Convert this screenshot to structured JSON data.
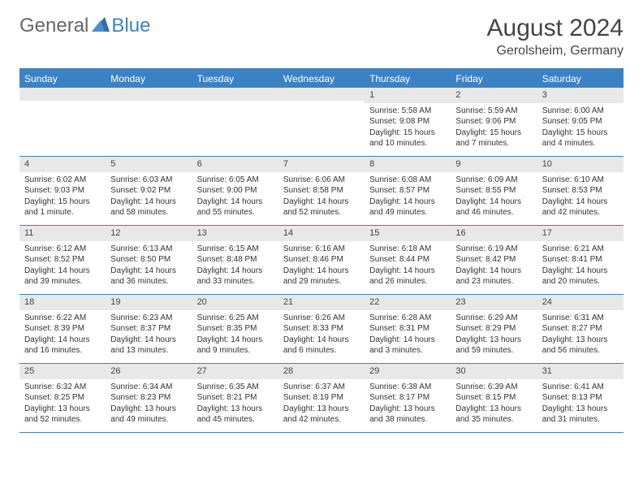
{
  "logo": {
    "general": "General",
    "blue": "Blue"
  },
  "title": "August 2024",
  "location": "Gerolsheim, Germany",
  "colors": {
    "accent": "#3b82c4",
    "headerBg": "#3b82c4",
    "dayNumBg": "#e8e8e8",
    "text": "#333333",
    "pageBg": "#ffffff"
  },
  "daysOfWeek": [
    "Sunday",
    "Monday",
    "Tuesday",
    "Wednesday",
    "Thursday",
    "Friday",
    "Saturday"
  ],
  "weeks": [
    [
      {
        "num": "",
        "lines": [
          "",
          "",
          ""
        ]
      },
      {
        "num": "",
        "lines": [
          "",
          "",
          ""
        ]
      },
      {
        "num": "",
        "lines": [
          "",
          "",
          ""
        ]
      },
      {
        "num": "",
        "lines": [
          "",
          "",
          ""
        ]
      },
      {
        "num": "1",
        "lines": [
          "Sunrise: 5:58 AM",
          "Sunset: 9:08 PM",
          "Daylight: 15 hours and 10 minutes."
        ]
      },
      {
        "num": "2",
        "lines": [
          "Sunrise: 5:59 AM",
          "Sunset: 9:06 PM",
          "Daylight: 15 hours and 7 minutes."
        ]
      },
      {
        "num": "3",
        "lines": [
          "Sunrise: 6:00 AM",
          "Sunset: 9:05 PM",
          "Daylight: 15 hours and 4 minutes."
        ]
      }
    ],
    [
      {
        "num": "4",
        "lines": [
          "Sunrise: 6:02 AM",
          "Sunset: 9:03 PM",
          "Daylight: 15 hours and 1 minute."
        ]
      },
      {
        "num": "5",
        "lines": [
          "Sunrise: 6:03 AM",
          "Sunset: 9:02 PM",
          "Daylight: 14 hours and 58 minutes."
        ]
      },
      {
        "num": "6",
        "lines": [
          "Sunrise: 6:05 AM",
          "Sunset: 9:00 PM",
          "Daylight: 14 hours and 55 minutes."
        ]
      },
      {
        "num": "7",
        "lines": [
          "Sunrise: 6:06 AM",
          "Sunset: 8:58 PM",
          "Daylight: 14 hours and 52 minutes."
        ]
      },
      {
        "num": "8",
        "lines": [
          "Sunrise: 6:08 AM",
          "Sunset: 8:57 PM",
          "Daylight: 14 hours and 49 minutes."
        ]
      },
      {
        "num": "9",
        "lines": [
          "Sunrise: 6:09 AM",
          "Sunset: 8:55 PM",
          "Daylight: 14 hours and 46 minutes."
        ]
      },
      {
        "num": "10",
        "lines": [
          "Sunrise: 6:10 AM",
          "Sunset: 8:53 PM",
          "Daylight: 14 hours and 42 minutes."
        ]
      }
    ],
    [
      {
        "num": "11",
        "lines": [
          "Sunrise: 6:12 AM",
          "Sunset: 8:52 PM",
          "Daylight: 14 hours and 39 minutes."
        ]
      },
      {
        "num": "12",
        "lines": [
          "Sunrise: 6:13 AM",
          "Sunset: 8:50 PM",
          "Daylight: 14 hours and 36 minutes."
        ]
      },
      {
        "num": "13",
        "lines": [
          "Sunrise: 6:15 AM",
          "Sunset: 8:48 PM",
          "Daylight: 14 hours and 33 minutes."
        ]
      },
      {
        "num": "14",
        "lines": [
          "Sunrise: 6:16 AM",
          "Sunset: 8:46 PM",
          "Daylight: 14 hours and 29 minutes."
        ]
      },
      {
        "num": "15",
        "lines": [
          "Sunrise: 6:18 AM",
          "Sunset: 8:44 PM",
          "Daylight: 14 hours and 26 minutes."
        ]
      },
      {
        "num": "16",
        "lines": [
          "Sunrise: 6:19 AM",
          "Sunset: 8:42 PM",
          "Daylight: 14 hours and 23 minutes."
        ]
      },
      {
        "num": "17",
        "lines": [
          "Sunrise: 6:21 AM",
          "Sunset: 8:41 PM",
          "Daylight: 14 hours and 20 minutes."
        ]
      }
    ],
    [
      {
        "num": "18",
        "lines": [
          "Sunrise: 6:22 AM",
          "Sunset: 8:39 PM",
          "Daylight: 14 hours and 16 minutes."
        ]
      },
      {
        "num": "19",
        "lines": [
          "Sunrise: 6:23 AM",
          "Sunset: 8:37 PM",
          "Daylight: 14 hours and 13 minutes."
        ]
      },
      {
        "num": "20",
        "lines": [
          "Sunrise: 6:25 AM",
          "Sunset: 8:35 PM",
          "Daylight: 14 hours and 9 minutes."
        ]
      },
      {
        "num": "21",
        "lines": [
          "Sunrise: 6:26 AM",
          "Sunset: 8:33 PM",
          "Daylight: 14 hours and 6 minutes."
        ]
      },
      {
        "num": "22",
        "lines": [
          "Sunrise: 6:28 AM",
          "Sunset: 8:31 PM",
          "Daylight: 14 hours and 3 minutes."
        ]
      },
      {
        "num": "23",
        "lines": [
          "Sunrise: 6:29 AM",
          "Sunset: 8:29 PM",
          "Daylight: 13 hours and 59 minutes."
        ]
      },
      {
        "num": "24",
        "lines": [
          "Sunrise: 6:31 AM",
          "Sunset: 8:27 PM",
          "Daylight: 13 hours and 56 minutes."
        ]
      }
    ],
    [
      {
        "num": "25",
        "lines": [
          "Sunrise: 6:32 AM",
          "Sunset: 8:25 PM",
          "Daylight: 13 hours and 52 minutes."
        ]
      },
      {
        "num": "26",
        "lines": [
          "Sunrise: 6:34 AM",
          "Sunset: 8:23 PM",
          "Daylight: 13 hours and 49 minutes."
        ]
      },
      {
        "num": "27",
        "lines": [
          "Sunrise: 6:35 AM",
          "Sunset: 8:21 PM",
          "Daylight: 13 hours and 45 minutes."
        ]
      },
      {
        "num": "28",
        "lines": [
          "Sunrise: 6:37 AM",
          "Sunset: 8:19 PM",
          "Daylight: 13 hours and 42 minutes."
        ]
      },
      {
        "num": "29",
        "lines": [
          "Sunrise: 6:38 AM",
          "Sunset: 8:17 PM",
          "Daylight: 13 hours and 38 minutes."
        ]
      },
      {
        "num": "30",
        "lines": [
          "Sunrise: 6:39 AM",
          "Sunset: 8:15 PM",
          "Daylight: 13 hours and 35 minutes."
        ]
      },
      {
        "num": "31",
        "lines": [
          "Sunrise: 6:41 AM",
          "Sunset: 8:13 PM",
          "Daylight: 13 hours and 31 minutes."
        ]
      }
    ]
  ]
}
